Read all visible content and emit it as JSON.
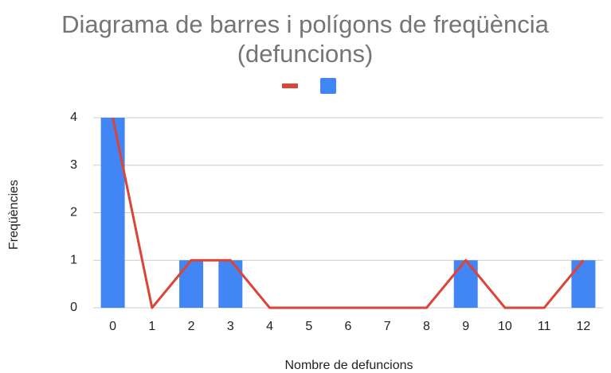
{
  "chart_data": {
    "type": "bar",
    "title": "Diagrama de barres i polígons de freqüència (defuncions)",
    "x_label": "Nombre de defuncions",
    "y_label": "Freqüències",
    "categories": [
      "0",
      "1",
      "2",
      "3",
      "4",
      "5",
      "6",
      "7",
      "8",
      "9",
      "10",
      "11",
      "12"
    ],
    "series": [
      {
        "type": "line",
        "color": "#db4437",
        "values": [
          4,
          0,
          1,
          1,
          0,
          0,
          0,
          0,
          0,
          1,
          0,
          0,
          1
        ]
      },
      {
        "type": "bar",
        "color": "#4285f4",
        "values": [
          4,
          0,
          1,
          1,
          0,
          0,
          0,
          0,
          0,
          1,
          0,
          0,
          1
        ]
      }
    ],
    "ylim": [
      0,
      4
    ],
    "yticks": [
      0,
      1,
      2,
      3,
      4
    ],
    "grid": true,
    "legend": "top"
  }
}
